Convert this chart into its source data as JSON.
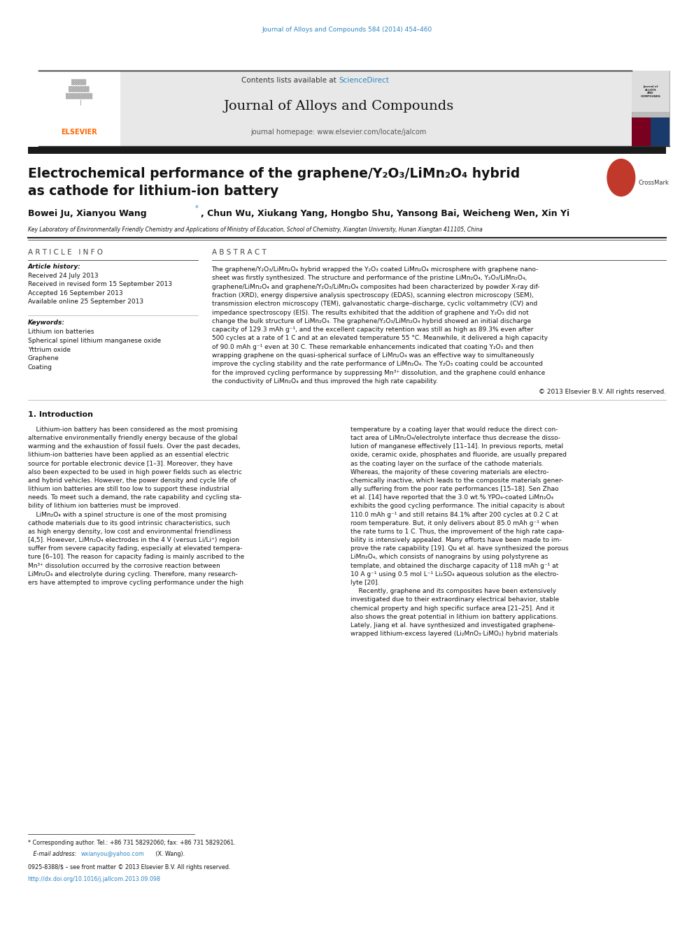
{
  "page_width": 9.92,
  "page_height": 13.23,
  "bg_color": "#ffffff",
  "top_journal_ref": "Journal of Alloys and Compounds 584 (2014) 454–460",
  "top_journal_ref_color": "#2e86c1",
  "header_bg": "#e8e8e8",
  "header_sciencedirect_color": "#2e86c1",
  "journal_name": "Journal of Alloys and Compounds",
  "journal_homepage": "journal homepage: www.elsevier.com/locate/jalcom",
  "thick_bar_color": "#1a1a1a",
  "article_title_line1": "Electrochemical performance of the graphene/Y₂O₃/LiMn₂O₄ hybrid",
  "article_title_line2": "as cathode for lithium-ion battery",
  "authors_part1": "Bowei Ju, Xianyou Wang",
  "authors_part2": ", Chun Wu, Xiukang Yang, Hongbo Shu, Yansong Bai, Weicheng Wen, Xin Yi",
  "affiliation": "Key Laboratory of Environmentally Friendly Chemistry and Applications of Ministry of Education, School of Chemistry, Xiangtan University, Hunan Xiangtan 411105, China",
  "article_info_header": "A R T I C L E   I N F O",
  "abstract_header": "A B S T R A C T",
  "article_history_label": "Article history:",
  "received1": "Received 24 July 2013",
  "received2": "Received in revised form 15 September 2013",
  "accepted": "Accepted 16 September 2013",
  "available": "Available online 25 September 2013",
  "keywords_label": "Keywords:",
  "keyword1": "Lithium ion batteries",
  "keyword2": "Spherical spinel lithium manganese oxide",
  "keyword3": "Yttrium oxide",
  "keyword4": "Graphene",
  "keyword5": "Coating",
  "copyright": "© 2013 Elsevier B.V. All rights reserved.",
  "intro_header": "1. Introduction",
  "footnote_star": "* Corresponding author. Tel.: +86 731 58292060; fax: +86 731 58292061.",
  "footnote_email": "wxianyou@yahoo.com",
  "footnote_email_color": "#2e86c1",
  "footnote_issn": "0925-8388/$ – see front matter © 2013 Elsevier B.V. All rights reserved.",
  "footnote_doi": "http://dx.doi.org/10.1016/j.jallcom.2013.09.098",
  "footnote_doi_color": "#2e86c1",
  "ref_color": "#2e86c1",
  "elsevier_color": "#ff6600",
  "abstract_lines": [
    "The graphene/Y₂O₃/LiMn₂O₄ hybrid wrapped the Y₂O₃ coated LiMn₂O₄ microsphere with graphene nano-",
    "sheet was firstly synthesized. The structure and performance of the pristine LiMn₂O₄, Y₂O₃/LiMn₂O₄,",
    "graphene/LiMn₂O₄ and graphene/Y₂O₃/LiMn₂O₄ composites had been characterized by powder X-ray dif-",
    "fraction (XRD), energy dispersive analysis spectroscopy (EDAS), scanning electron microscopy (SEM),",
    "transmission electron microscopy (TEM), galvanostatic charge–discharge, cyclic voltammetry (CV) and",
    "impedance spectroscopy (EIS). The results exhibited that the addition of graphene and Y₂O₃ did not",
    "change the bulk structure of LiMn₂O₄. The graphene/Y₂O₃/LiMn₂O₄ hybrid showed an initial discharge",
    "capacity of 129.3 mAh g⁻¹, and the excellent capacity retention was still as high as 89.3% even after",
    "500 cycles at a rate of 1 C and at an elevated temperature 55 °C. Meanwhile, it delivered a high capacity",
    "of 90.0 mAh g⁻¹ even at 30 C. These remarkable enhancements indicated that coating Y₂O₃ and then",
    "wrapping graphene on the quasi-spherical surface of LiMn₂O₄ was an effective way to simultaneously",
    "improve the cycling stability and the rate performance of LiMn₂O₄. The Y₂O₃ coating could be accounted",
    "for the improved cycling performance by suppressing Mn³⁺ dissolution, and the graphene could enhance",
    "the conductivity of LiMn₂O₄ and thus improved the high rate capability."
  ],
  "intro_col1_lines": [
    "    Lithium-ion battery has been considered as the most promising",
    "alternative environmentally friendly energy because of the global",
    "warming and the exhaustion of fossil fuels. Over the past decades,",
    "lithium-ion batteries have been applied as an essential electric",
    "source for portable electronic device [1–3]. Moreover, they have",
    "also been expected to be used in high power fields such as electric",
    "and hybrid vehicles. However, the power density and cycle life of",
    "lithium ion batteries are still too low to support these industrial",
    "needs. To meet such a demand, the rate capability and cycling sta-",
    "bility of lithium ion batteries must be improved.",
    "    LiMn₂O₄ with a spinel structure is one of the most promising",
    "cathode materials due to its good intrinsic characteristics, such",
    "as high energy density, low cost and environmental friendliness",
    "[4,5]. However, LiMn₂O₄ electrodes in the 4 V (versus Li/Li⁺) region",
    "suffer from severe capacity fading, especially at elevated tempera-",
    "ture [6–10]. The reason for capacity fading is mainly ascribed to the",
    "Mn³⁺ dissolution occurred by the corrosive reaction between",
    "LiMn₂O₄ and electrolyte during cycling. Therefore, many research-",
    "ers have attempted to improve cycling performance under the high"
  ],
  "intro_col2_lines": [
    "temperature by a coating layer that would reduce the direct con-",
    "tact area of LiMn₂O₄/electrolyte interface thus decrease the disso-",
    "lution of manganese effectively [11–14]. In previous reports, metal",
    "oxide, ceramic oxide, phosphates and fluoride, are usually prepared",
    "as the coating layer on the surface of the cathode materials.",
    "Whereas, the majority of these covering materials are electro-",
    "chemically inactive, which leads to the composite materials gener-",
    "ally suffering from the poor rate performances [15–18]. Sen Zhao",
    "et al. [14] have reported that the 3.0 wt.% YPO₄-coated LiMn₂O₄",
    "exhibits the good cycling performance. The initial capacity is about",
    "110.0 mAh g⁻¹ and still retains 84.1% after 200 cycles at 0.2 C at",
    "room temperature. But, it only delivers about 85.0 mAh g⁻¹ when",
    "the rate turns to 1 C. Thus, the improvement of the high rate capa-",
    "bility is intensively appealed. Many efforts have been made to im-",
    "prove the rate capability [19]. Qu et al. have synthesized the porous",
    "LiMn₂O₄, which consists of nanograins by using polystyrene as",
    "template, and obtained the discharge capacity of 118 mAh g⁻¹ at",
    "10 A g⁻¹ using 0.5 mol L⁻¹ Li₂SO₄ aqueous solution as the electro-",
    "lyte [20].",
    "    Recently, graphene and its composites have been extensively",
    "investigated due to their extraordinary electrical behavior, stable",
    "chemical property and high specific surface area [21–25]. And it",
    "also shows the great potential in lithium ion battery applications.",
    "Lately, Jiang et al. have synthesized and investigated graphene-",
    "wrapped lithium-excess layered (Li₂MnO₃·LiMO₂) hybrid materials"
  ]
}
